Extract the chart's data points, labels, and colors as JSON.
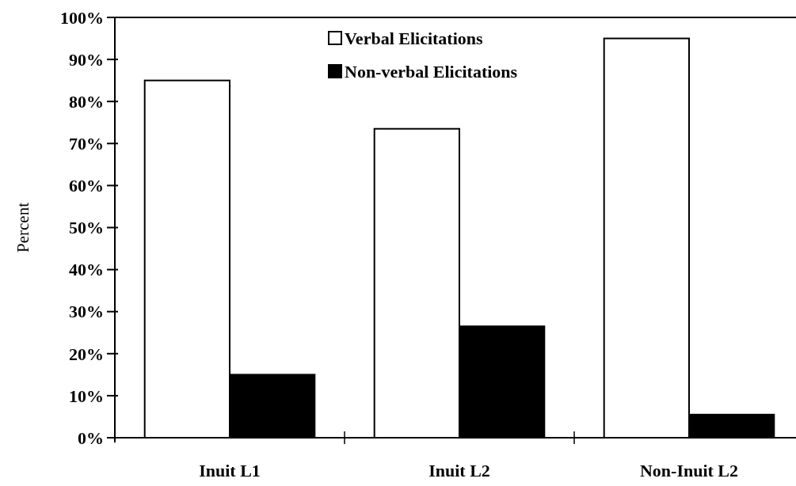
{
  "chart_data": {
    "type": "bar",
    "ylabel": "Percent",
    "categories": [
      "Inuit L1",
      "Inuit L2",
      "Non-Inuit L2"
    ],
    "series": [
      {
        "name": "Verbal Elicitations",
        "color": "#ffffff",
        "values": [
          85,
          73.5,
          95
        ]
      },
      {
        "name": "Non-verbal Elicitations",
        "color": "#000000",
        "values": [
          15,
          26.5,
          5.5
        ]
      }
    ],
    "ylim": [
      0,
      100
    ],
    "yticks": [
      {
        "value": 0,
        "label": "0%"
      },
      {
        "value": 10,
        "label": "10%"
      },
      {
        "value": 20,
        "label": "20%"
      },
      {
        "value": 30,
        "label": "30%"
      },
      {
        "value": 40,
        "label": "40%"
      },
      {
        "value": 50,
        "label": "50%"
      },
      {
        "value": 60,
        "label": "60%"
      },
      {
        "value": 70,
        "label": "70%"
      },
      {
        "value": 80,
        "label": "80%"
      },
      {
        "value": 90,
        "label": "90%"
      },
      {
        "value": 100,
        "label": "100%"
      }
    ],
    "legend": "top"
  }
}
